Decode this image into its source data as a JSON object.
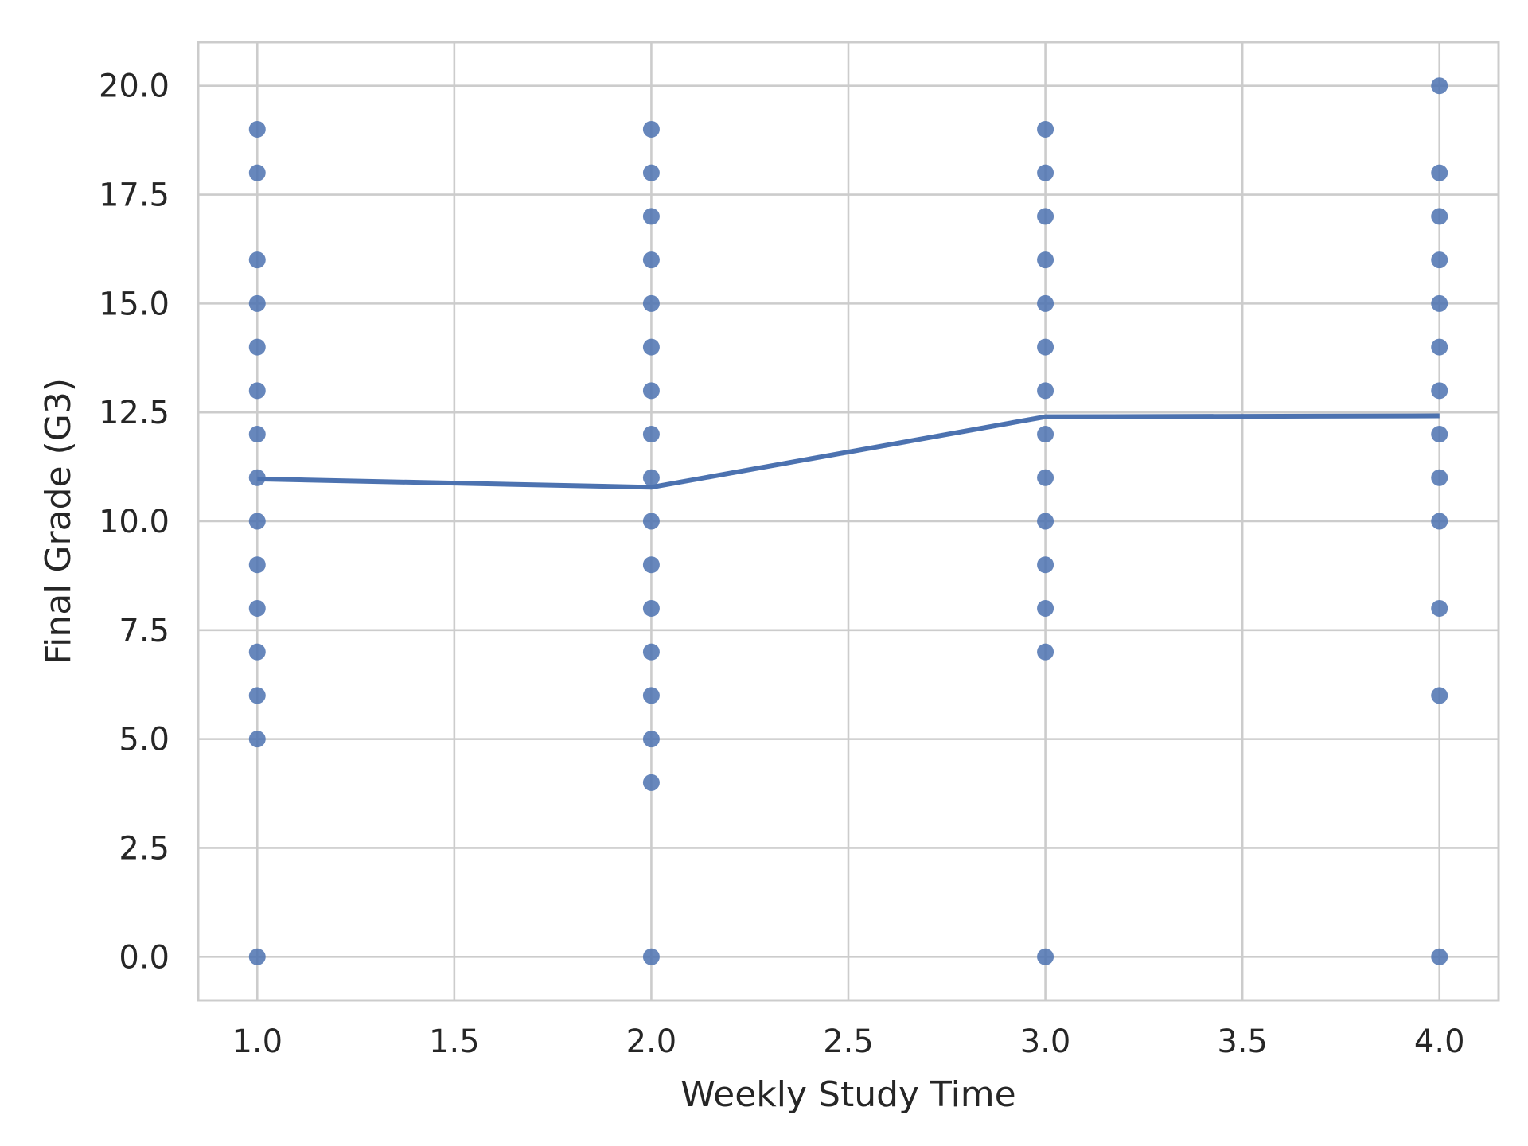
{
  "chart_data": {
    "type": "scatter",
    "title": "",
    "xlabel": "Weekly Study Time",
    "ylabel": "Final Grade (G3)",
    "xlim": [
      0.85,
      4.15
    ],
    "ylim": [
      -1.0,
      21.0
    ],
    "x_ticks": [
      "1.0",
      "1.5",
      "2.0",
      "2.5",
      "3.0",
      "3.5",
      "4.0"
    ],
    "x_tick_values": [
      1.0,
      1.5,
      2.0,
      2.5,
      3.0,
      3.5,
      4.0
    ],
    "y_ticks": [
      "0.0",
      "2.5",
      "5.0",
      "7.5",
      "10.0",
      "12.5",
      "15.0",
      "17.5",
      "20.0"
    ],
    "y_tick_values": [
      0,
      2.5,
      5,
      7.5,
      10,
      12.5,
      15,
      17.5,
      20
    ],
    "grid": true,
    "color": "#4c72b0",
    "series": [
      {
        "kind": "points",
        "points": [
          {
            "x": 1,
            "y": 19
          },
          {
            "x": 1,
            "y": 18
          },
          {
            "x": 1,
            "y": 16
          },
          {
            "x": 1,
            "y": 15
          },
          {
            "x": 1,
            "y": 14
          },
          {
            "x": 1,
            "y": 13
          },
          {
            "x": 1,
            "y": 12
          },
          {
            "x": 1,
            "y": 11
          },
          {
            "x": 1,
            "y": 10
          },
          {
            "x": 1,
            "y": 9
          },
          {
            "x": 1,
            "y": 8
          },
          {
            "x": 1,
            "y": 7
          },
          {
            "x": 1,
            "y": 6
          },
          {
            "x": 1,
            "y": 5
          },
          {
            "x": 1,
            "y": 0
          },
          {
            "x": 2,
            "y": 19
          },
          {
            "x": 2,
            "y": 18
          },
          {
            "x": 2,
            "y": 17
          },
          {
            "x": 2,
            "y": 16
          },
          {
            "x": 2,
            "y": 15
          },
          {
            "x": 2,
            "y": 14
          },
          {
            "x": 2,
            "y": 13
          },
          {
            "x": 2,
            "y": 12
          },
          {
            "x": 2,
            "y": 11
          },
          {
            "x": 2,
            "y": 10
          },
          {
            "x": 2,
            "y": 9
          },
          {
            "x": 2,
            "y": 8
          },
          {
            "x": 2,
            "y": 7
          },
          {
            "x": 2,
            "y": 6
          },
          {
            "x": 2,
            "y": 5
          },
          {
            "x": 2,
            "y": 4
          },
          {
            "x": 2,
            "y": 0
          },
          {
            "x": 3,
            "y": 19
          },
          {
            "x": 3,
            "y": 18
          },
          {
            "x": 3,
            "y": 17
          },
          {
            "x": 3,
            "y": 16
          },
          {
            "x": 3,
            "y": 15
          },
          {
            "x": 3,
            "y": 14
          },
          {
            "x": 3,
            "y": 13
          },
          {
            "x": 3,
            "y": 12
          },
          {
            "x": 3,
            "y": 11
          },
          {
            "x": 3,
            "y": 10
          },
          {
            "x": 3,
            "y": 9
          },
          {
            "x": 3,
            "y": 8
          },
          {
            "x": 3,
            "y": 7
          },
          {
            "x": 3,
            "y": 0
          },
          {
            "x": 4,
            "y": 20
          },
          {
            "x": 4,
            "y": 18
          },
          {
            "x": 4,
            "y": 17
          },
          {
            "x": 4,
            "y": 16
          },
          {
            "x": 4,
            "y": 15
          },
          {
            "x": 4,
            "y": 14
          },
          {
            "x": 4,
            "y": 13
          },
          {
            "x": 4,
            "y": 12
          },
          {
            "x": 4,
            "y": 11
          },
          {
            "x": 4,
            "y": 10
          },
          {
            "x": 4,
            "y": 8
          },
          {
            "x": 4,
            "y": 6
          },
          {
            "x": 4,
            "y": 0
          }
        ]
      },
      {
        "kind": "line",
        "x": [
          1,
          2,
          3,
          4
        ],
        "y": [
          10.97,
          10.78,
          12.4,
          12.42
        ]
      }
    ]
  }
}
